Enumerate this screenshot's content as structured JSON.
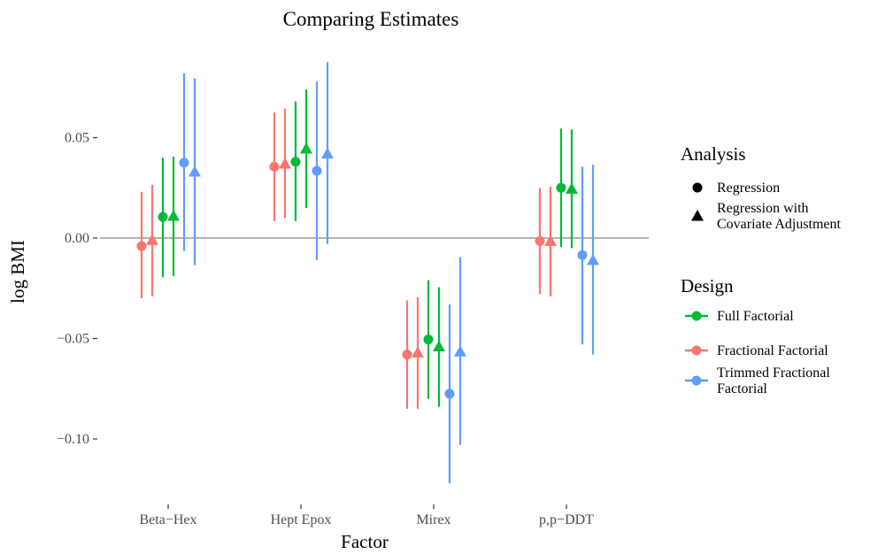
{
  "chart_data": {
    "type": "scatter",
    "subtype": "point-range",
    "title": "Comparing Estimates",
    "xlabel": "Factor",
    "ylabel": "log BMI",
    "categories": [
      "Beta−Hex",
      "Hept Epox",
      "Mirex",
      "p,p−DDT"
    ],
    "ylim": [
      -0.13,
      0.09
    ],
    "yticks": [
      0.05,
      0.0,
      -0.05,
      -0.1
    ],
    "ytick_labels": [
      "0.05",
      "0.00",
      "−0.05",
      "−0.10"
    ],
    "reference_line": 0.0,
    "grid": false,
    "legend_position": "right",
    "legend": {
      "analysis": {
        "title": "Analysis",
        "items": [
          {
            "shape": "circle",
            "label_lines": [
              "Regression"
            ]
          },
          {
            "shape": "triangle",
            "label_lines": [
              "Regression with",
              "Covariate Adjustment"
            ]
          }
        ]
      },
      "design": {
        "title": "Design",
        "items": [
          {
            "color": "#00ba38",
            "label_lines": [
              "Full Factorial"
            ]
          },
          {
            "color": "#f8766d",
            "label_lines": [
              "Fractional Factorial"
            ]
          },
          {
            "color": "#619cff",
            "label_lines": [
              "Trimmed Fractional",
              "Factorial"
            ]
          }
        ]
      }
    },
    "series": [
      {
        "design": "Fractional Factorial",
        "analysis": "Regression",
        "color": "#f8766d",
        "shape": "circle",
        "points": [
          {
            "x": "Beta−Hex",
            "y": -0.004,
            "lo": -0.03,
            "hi": 0.023
          },
          {
            "x": "Hept Epox",
            "y": 0.0355,
            "lo": 0.0085,
            "hi": 0.0625
          },
          {
            "x": "Mirex",
            "y": -0.058,
            "lo": -0.085,
            "hi": -0.031
          },
          {
            "x": "p,p−DDT",
            "y": -0.0015,
            "lo": -0.028,
            "hi": 0.025
          }
        ]
      },
      {
        "design": "Fractional Factorial",
        "analysis": "Regression with Covariate Adjustment",
        "color": "#f8766d",
        "shape": "triangle",
        "points": [
          {
            "x": "Beta−Hex",
            "y": -0.001,
            "lo": -0.029,
            "hi": 0.0265
          },
          {
            "x": "Hept Epox",
            "y": 0.037,
            "lo": 0.01,
            "hi": 0.0645
          },
          {
            "x": "Mirex",
            "y": -0.057,
            "lo": -0.085,
            "hi": -0.0295
          },
          {
            "x": "p,p−DDT",
            "y": -0.0015,
            "lo": -0.029,
            "hi": 0.0255
          }
        ]
      },
      {
        "design": "Full Factorial",
        "analysis": "Regression",
        "color": "#00ba38",
        "shape": "circle",
        "points": [
          {
            "x": "Beta−Hex",
            "y": 0.0105,
            "lo": -0.0195,
            "hi": 0.04
          },
          {
            "x": "Hept Epox",
            "y": 0.038,
            "lo": 0.0085,
            "hi": 0.068
          },
          {
            "x": "Mirex",
            "y": -0.0505,
            "lo": -0.08,
            "hi": -0.021
          },
          {
            "x": "p,p−DDT",
            "y": 0.025,
            "lo": -0.0045,
            "hi": 0.0545
          }
        ]
      },
      {
        "design": "Full Factorial",
        "analysis": "Regression with Covariate Adjustment",
        "color": "#00ba38",
        "shape": "triangle",
        "points": [
          {
            "x": "Beta−Hex",
            "y": 0.011,
            "lo": -0.019,
            "hi": 0.0405
          },
          {
            "x": "Hept Epox",
            "y": 0.0445,
            "lo": 0.015,
            "hi": 0.074
          },
          {
            "x": "Mirex",
            "y": -0.054,
            "lo": -0.084,
            "hi": -0.0245
          },
          {
            "x": "p,p−DDT",
            "y": 0.0245,
            "lo": -0.005,
            "hi": 0.054
          }
        ]
      },
      {
        "design": "Trimmed Fractional Factorial",
        "analysis": "Regression",
        "color": "#619cff",
        "shape": "circle",
        "points": [
          {
            "x": "Beta−Hex",
            "y": 0.0375,
            "lo": -0.0065,
            "hi": 0.082
          },
          {
            "x": "Hept Epox",
            "y": 0.0335,
            "lo": -0.011,
            "hi": 0.078
          },
          {
            "x": "Mirex",
            "y": -0.0775,
            "lo": -0.122,
            "hi": -0.033
          },
          {
            "x": "p,p−DDT",
            "y": -0.0085,
            "lo": -0.053,
            "hi": 0.0355
          }
        ]
      },
      {
        "design": "Trimmed Fractional Factorial",
        "analysis": "Regression with Covariate Adjustment",
        "color": "#619cff",
        "shape": "triangle",
        "points": [
          {
            "x": "Beta−Hex",
            "y": 0.033,
            "lo": -0.0135,
            "hi": 0.0795
          },
          {
            "x": "Hept Epox",
            "y": 0.042,
            "lo": -0.003,
            "hi": 0.0875
          },
          {
            "x": "Mirex",
            "y": -0.0565,
            "lo": -0.103,
            "hi": -0.0095
          },
          {
            "x": "p,p−DDT",
            "y": -0.011,
            "lo": -0.058,
            "hi": 0.0365
          }
        ]
      }
    ]
  }
}
